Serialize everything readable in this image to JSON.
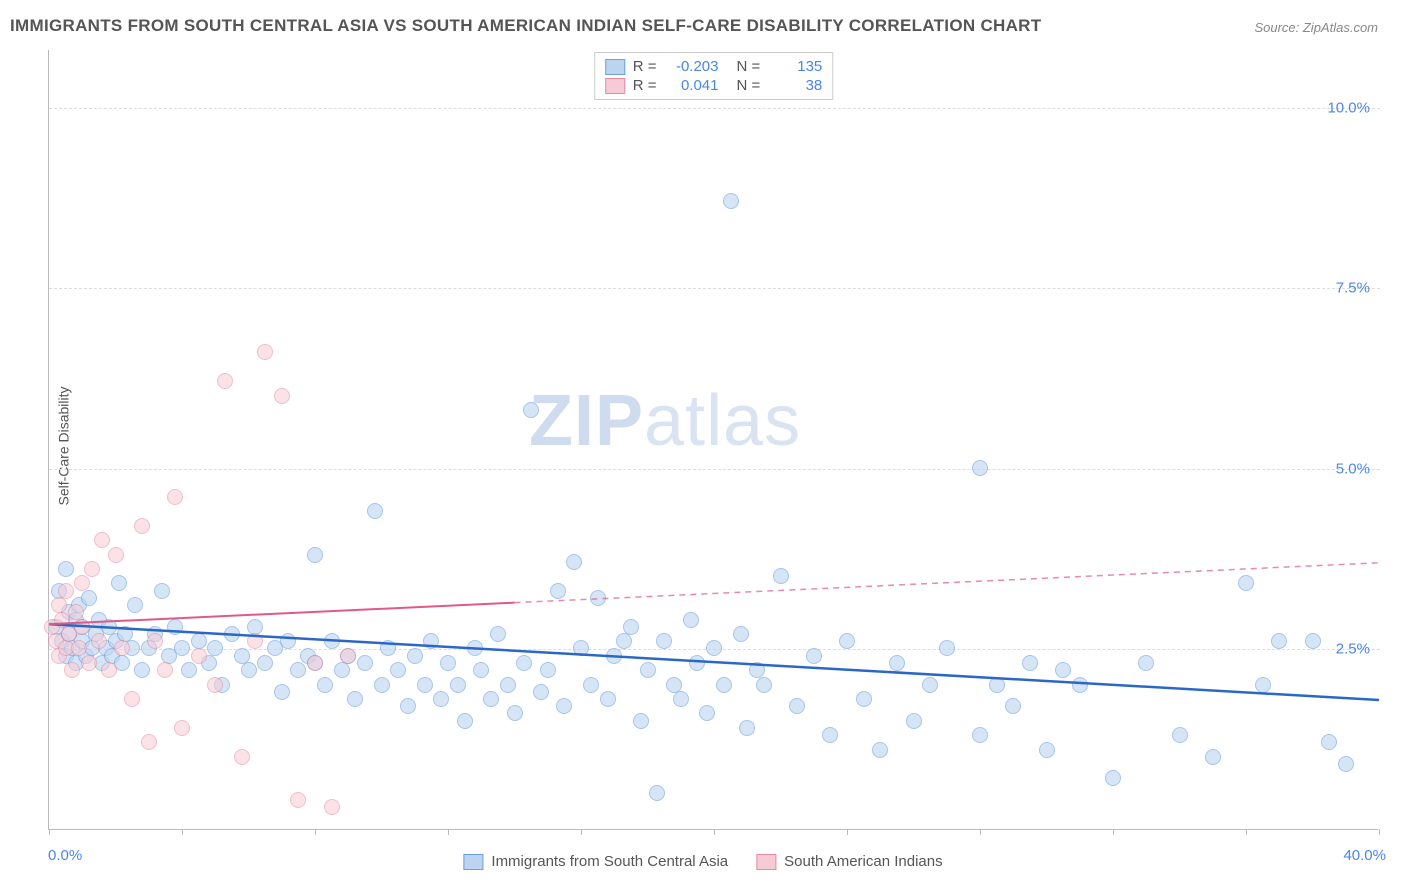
{
  "title": "IMMIGRANTS FROM SOUTH CENTRAL ASIA VS SOUTH AMERICAN INDIAN SELF-CARE DISABILITY CORRELATION CHART",
  "source": "Source: ZipAtlas.com",
  "ylabel": "Self-Care Disability",
  "watermark_bold": "ZIP",
  "watermark_rest": "atlas",
  "accent_color": "#4a86e8",
  "background_color": "#ffffff",
  "grid_color": "#dddddd",
  "axis_color": "#bbbbbb",
  "xlim": [
    0,
    40
  ],
  "ylim": [
    0,
    10.8
  ],
  "yticks": [
    2.5,
    5.0,
    7.5,
    10.0
  ],
  "ytick_labels": [
    "2.5%",
    "5.0%",
    "7.5%",
    "10.0%"
  ],
  "xtick_marks": [
    0,
    4,
    8,
    12,
    16,
    20,
    24,
    28,
    32,
    36,
    40
  ],
  "xlim_label_left": "0.0%",
  "xlim_label_right": "40.0%",
  "series": [
    {
      "name": "Immigrants from South Central Asia",
      "fill": "#bcd4f0",
      "stroke": "#6c9fe0",
      "line_color": "#2b68c5",
      "line_width": 2.5,
      "marker_r": 8,
      "fill_opacity": 0.6,
      "R": "-0.203",
      "N": "135",
      "trend": {
        "x1": 0,
        "y1": 2.85,
        "x2": 40,
        "y2": 1.8,
        "dash_after_x": 40
      },
      "points": [
        [
          0.2,
          2.8
        ],
        [
          0.3,
          3.3
        ],
        [
          0.4,
          2.6
        ],
        [
          0.5,
          2.4
        ],
        [
          0.5,
          3.6
        ],
        [
          0.6,
          2.7
        ],
        [
          0.6,
          3.0
        ],
        [
          0.7,
          2.5
        ],
        [
          0.8,
          2.9
        ],
        [
          0.8,
          2.3
        ],
        [
          0.9,
          3.1
        ],
        [
          1.0,
          2.6
        ],
        [
          1.0,
          2.8
        ],
        [
          1.1,
          2.4
        ],
        [
          1.2,
          3.2
        ],
        [
          1.3,
          2.5
        ],
        [
          1.4,
          2.7
        ],
        [
          1.5,
          2.9
        ],
        [
          1.6,
          2.3
        ],
        [
          1.7,
          2.5
        ],
        [
          1.8,
          2.8
        ],
        [
          1.9,
          2.4
        ],
        [
          2.0,
          2.6
        ],
        [
          2.1,
          3.4
        ],
        [
          2.2,
          2.3
        ],
        [
          2.3,
          2.7
        ],
        [
          2.5,
          2.5
        ],
        [
          2.6,
          3.1
        ],
        [
          2.8,
          2.2
        ],
        [
          3.0,
          2.5
        ],
        [
          3.2,
          2.7
        ],
        [
          3.4,
          3.3
        ],
        [
          3.6,
          2.4
        ],
        [
          3.8,
          2.8
        ],
        [
          4.0,
          2.5
        ],
        [
          4.2,
          2.2
        ],
        [
          4.5,
          2.6
        ],
        [
          4.8,
          2.3
        ],
        [
          5.0,
          2.5
        ],
        [
          5.2,
          2.0
        ],
        [
          5.5,
          2.7
        ],
        [
          5.8,
          2.4
        ],
        [
          6.0,
          2.2
        ],
        [
          6.2,
          2.8
        ],
        [
          6.5,
          2.3
        ],
        [
          6.8,
          2.5
        ],
        [
          7.0,
          1.9
        ],
        [
          7.2,
          2.6
        ],
        [
          7.5,
          2.2
        ],
        [
          7.8,
          2.4
        ],
        [
          8.0,
          3.8
        ],
        [
          8.0,
          2.3
        ],
        [
          8.3,
          2.0
        ],
        [
          8.5,
          2.6
        ],
        [
          8.8,
          2.2
        ],
        [
          9.0,
          2.4
        ],
        [
          9.2,
          1.8
        ],
        [
          9.5,
          2.3
        ],
        [
          9.8,
          4.4
        ],
        [
          10.0,
          2.0
        ],
        [
          10.2,
          2.5
        ],
        [
          10.5,
          2.2
        ],
        [
          10.8,
          1.7
        ],
        [
          11.0,
          2.4
        ],
        [
          11.3,
          2.0
        ],
        [
          11.5,
          2.6
        ],
        [
          11.8,
          1.8
        ],
        [
          12.0,
          2.3
        ],
        [
          12.3,
          2.0
        ],
        [
          12.5,
          1.5
        ],
        [
          12.8,
          2.5
        ],
        [
          13.0,
          2.2
        ],
        [
          13.3,
          1.8
        ],
        [
          13.5,
          2.7
        ],
        [
          13.8,
          2.0
        ],
        [
          14.0,
          1.6
        ],
        [
          14.3,
          2.3
        ],
        [
          14.5,
          5.8
        ],
        [
          14.8,
          1.9
        ],
        [
          15.0,
          2.2
        ],
        [
          15.3,
          3.3
        ],
        [
          15.5,
          1.7
        ],
        [
          15.8,
          3.7
        ],
        [
          16.0,
          2.5
        ],
        [
          16.3,
          2.0
        ],
        [
          16.5,
          3.2
        ],
        [
          16.8,
          1.8
        ],
        [
          17.0,
          2.4
        ],
        [
          17.3,
          2.6
        ],
        [
          17.5,
          2.8
        ],
        [
          17.8,
          1.5
        ],
        [
          18.0,
          2.2
        ],
        [
          18.3,
          0.5
        ],
        [
          18.5,
          2.6
        ],
        [
          18.8,
          2.0
        ],
        [
          19.0,
          1.8
        ],
        [
          19.3,
          2.9
        ],
        [
          19.5,
          2.3
        ],
        [
          19.8,
          1.6
        ],
        [
          20.0,
          2.5
        ],
        [
          20.3,
          2.0
        ],
        [
          20.5,
          8.7
        ],
        [
          20.8,
          2.7
        ],
        [
          21.0,
          1.4
        ],
        [
          21.3,
          2.2
        ],
        [
          21.5,
          2.0
        ],
        [
          22.0,
          3.5
        ],
        [
          22.5,
          1.7
        ],
        [
          23.0,
          2.4
        ],
        [
          23.5,
          1.3
        ],
        [
          24.0,
          2.6
        ],
        [
          24.5,
          1.8
        ],
        [
          25.0,
          1.1
        ],
        [
          25.5,
          2.3
        ],
        [
          26.0,
          1.5
        ],
        [
          26.5,
          2.0
        ],
        [
          27.0,
          2.5
        ],
        [
          28.0,
          5.0
        ],
        [
          28.0,
          1.3
        ],
        [
          28.5,
          2.0
        ],
        [
          29.0,
          1.7
        ],
        [
          29.5,
          2.3
        ],
        [
          30.0,
          1.1
        ],
        [
          30.5,
          2.2
        ],
        [
          31.0,
          2.0
        ],
        [
          32.0,
          0.7
        ],
        [
          33.0,
          2.3
        ],
        [
          34.0,
          1.3
        ],
        [
          35.0,
          1.0
        ],
        [
          36.0,
          3.4
        ],
        [
          36.5,
          2.0
        ],
        [
          37.0,
          2.6
        ],
        [
          38.0,
          2.6
        ],
        [
          38.5,
          1.2
        ],
        [
          39.0,
          0.9
        ]
      ]
    },
    {
      "name": "South American Indians",
      "fill": "#f6cbd5",
      "stroke": "#e68aa3",
      "line_color": "#e05a87",
      "line_width": 2,
      "marker_r": 8,
      "fill_opacity": 0.55,
      "R": "0.041",
      "N": "38",
      "trend": {
        "x1": 0,
        "y1": 2.85,
        "x2": 40,
        "y2": 3.7,
        "dash_after_x": 14
      },
      "points": [
        [
          0.1,
          2.8
        ],
        [
          0.2,
          2.6
        ],
        [
          0.3,
          3.1
        ],
        [
          0.3,
          2.4
        ],
        [
          0.4,
          2.9
        ],
        [
          0.5,
          2.5
        ],
        [
          0.5,
          3.3
        ],
        [
          0.6,
          2.7
        ],
        [
          0.7,
          2.2
        ],
        [
          0.8,
          3.0
        ],
        [
          0.9,
          2.5
        ],
        [
          1.0,
          2.8
        ],
        [
          1.0,
          3.4
        ],
        [
          1.2,
          2.3
        ],
        [
          1.3,
          3.6
        ],
        [
          1.5,
          2.6
        ],
        [
          1.6,
          4.0
        ],
        [
          1.8,
          2.2
        ],
        [
          2.0,
          3.8
        ],
        [
          2.2,
          2.5
        ],
        [
          2.5,
          1.8
        ],
        [
          2.8,
          4.2
        ],
        [
          3.0,
          1.2
        ],
        [
          3.2,
          2.6
        ],
        [
          3.5,
          2.2
        ],
        [
          3.8,
          4.6
        ],
        [
          4.0,
          1.4
        ],
        [
          4.5,
          2.4
        ],
        [
          5.0,
          2.0
        ],
        [
          5.3,
          6.2
        ],
        [
          5.8,
          1.0
        ],
        [
          6.2,
          2.6
        ],
        [
          6.5,
          6.6
        ],
        [
          7.0,
          6.0
        ],
        [
          7.5,
          0.4
        ],
        [
          8.0,
          2.3
        ],
        [
          8.5,
          0.3
        ],
        [
          9.0,
          2.4
        ]
      ]
    }
  ],
  "legend": {
    "s1_label": "Immigrants from South Central Asia",
    "s2_label": "South American Indians"
  }
}
